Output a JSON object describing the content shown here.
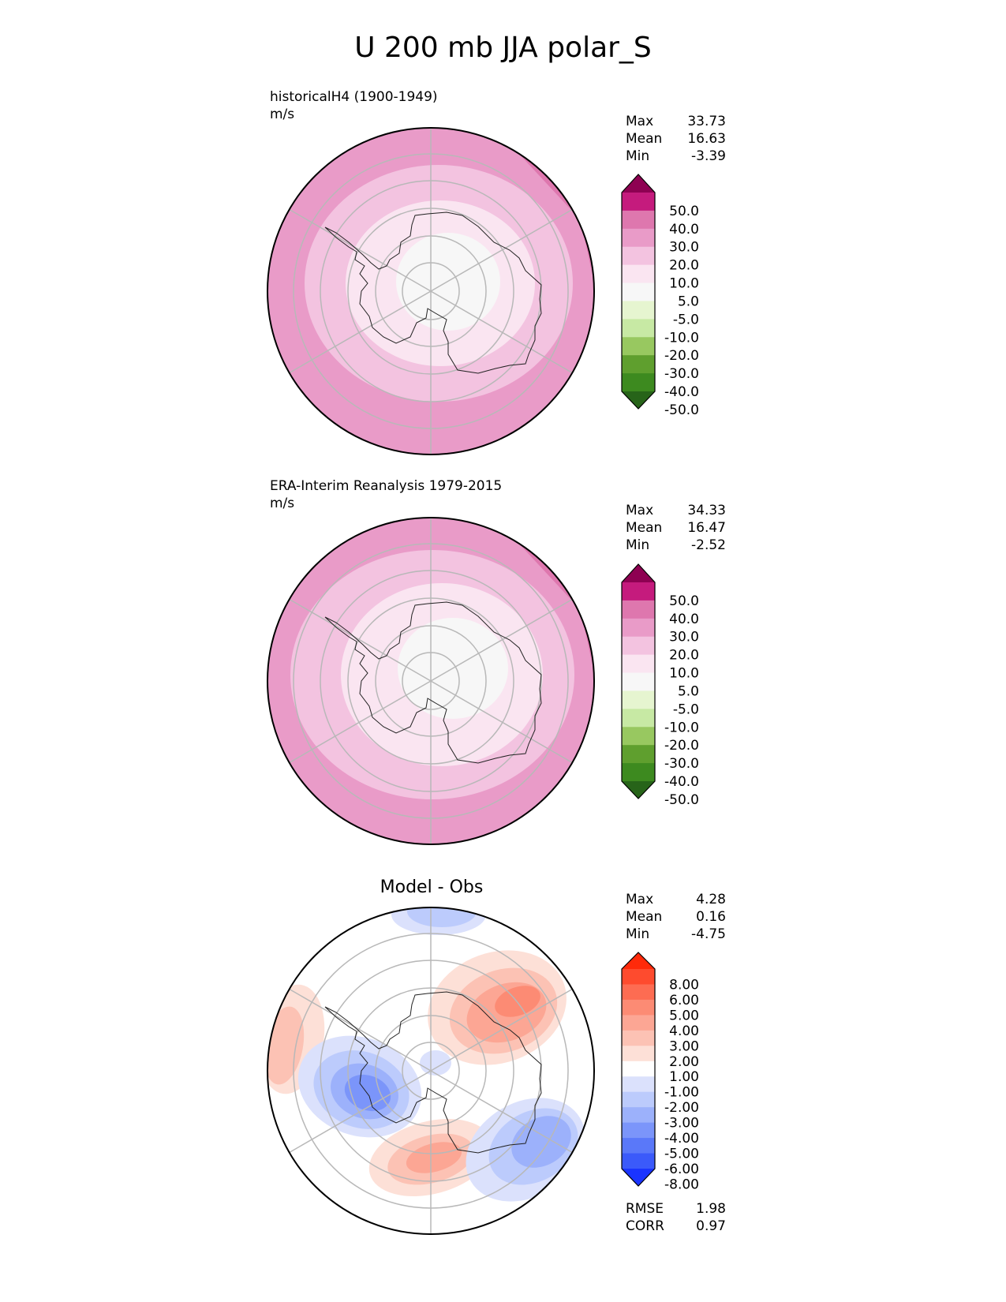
{
  "title": "U 200 mb JJA polar_S",
  "chart_data": [
    {
      "type": "heatmap",
      "projection": "polar stereographic (south pole)",
      "label_line1": "historicalH4 (1900-1949)",
      "label_line2": "m/s",
      "stats": [
        {
          "name": "Max",
          "value": "33.73"
        },
        {
          "name": "Mean",
          "value": "16.63"
        },
        {
          "name": "Min",
          "value": "-3.39"
        }
      ],
      "colorbar": {
        "levels": [
          "50.0",
          "40.0",
          "30.0",
          "20.0",
          "10.0",
          "5.0",
          "-5.0",
          "-10.0",
          "-20.0",
          "-30.0",
          "-40.0",
          "-50.0"
        ],
        "colors": [
          "#8e0152",
          "#c51b7d",
          "#de77ae",
          "#e99bc8",
          "#f3c3e0",
          "#fae5f1",
          "#f7f7f7",
          "#e6f5d0",
          "#c7e9a4",
          "#98c860",
          "#5f9f2e",
          "#3d8a1f",
          "#276419"
        ]
      }
    },
    {
      "type": "heatmap",
      "projection": "polar stereographic (south pole)",
      "label_line1": "ERA-Interim Reanalysis 1979-2015",
      "label_line2": "m/s",
      "stats": [
        {
          "name": "Max",
          "value": "34.33"
        },
        {
          "name": "Mean",
          "value": "16.47"
        },
        {
          "name": "Min",
          "value": "-2.52"
        }
      ],
      "colorbar": {
        "levels": [
          "50.0",
          "40.0",
          "30.0",
          "20.0",
          "10.0",
          "5.0",
          "-5.0",
          "-10.0",
          "-20.0",
          "-30.0",
          "-40.0",
          "-50.0"
        ],
        "colors": [
          "#8e0152",
          "#c51b7d",
          "#de77ae",
          "#e99bc8",
          "#f3c3e0",
          "#fae5f1",
          "#f7f7f7",
          "#e6f5d0",
          "#c7e9a4",
          "#98c860",
          "#5f9f2e",
          "#3d8a1f",
          "#276419"
        ]
      }
    },
    {
      "type": "heatmap",
      "projection": "polar stereographic (south pole)",
      "title": "Model - Obs",
      "stats": [
        {
          "name": "Max",
          "value": "4.28"
        },
        {
          "name": "Mean",
          "value": "0.16"
        },
        {
          "name": "Min",
          "value": "-4.75"
        }
      ],
      "metrics": [
        {
          "name": "RMSE",
          "value": "1.98"
        },
        {
          "name": "CORR",
          "value": "0.97"
        }
      ],
      "colorbar": {
        "levels": [
          "8.00",
          "6.00",
          "5.00",
          "4.00",
          "3.00",
          "2.00",
          "1.00",
          "-1.00",
          "-2.00",
          "-3.00",
          "-4.00",
          "-5.00",
          "-6.00",
          "-8.00"
        ],
        "colors": [
          "#ff2a0a",
          "#fe4b2e",
          "#fd6c52",
          "#fc8b74",
          "#fca694",
          "#fcc2b4",
          "#fde0d7",
          "#ffffff",
          "#dbe1fc",
          "#bccbfc",
          "#9cb1fb",
          "#7b95fa",
          "#5a78f9",
          "#3b5afa",
          "#1a34ff"
        ]
      }
    }
  ]
}
